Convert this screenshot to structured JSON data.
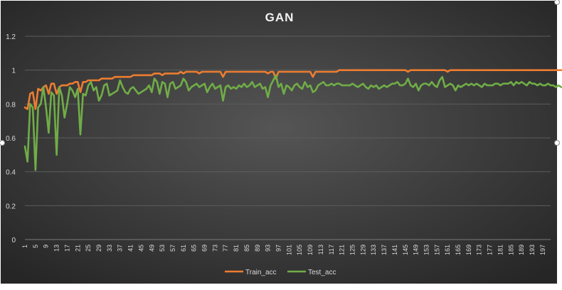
{
  "chart_data": {
    "type": "line",
    "title": "GAN",
    "xlabel": "",
    "ylabel": "",
    "ylim": [
      0,
      1.2
    ],
    "yticks": [
      "0",
      "0.2",
      "0.4",
      "0.6",
      "0.8",
      "1",
      "1.2"
    ],
    "xrange": [
      1,
      200
    ],
    "xtick_start": 1,
    "xtick_step": 4,
    "grid": true,
    "legend_position": "bottom",
    "series": [
      {
        "name": "Train_acc",
        "color": "#ED7D31",
        "values": [
          0.78,
          0.77,
          0.86,
          0.87,
          0.77,
          0.89,
          0.88,
          0.9,
          0.91,
          0.86,
          0.92,
          0.92,
          0.86,
          0.9,
          0.91,
          0.91,
          0.91,
          0.92,
          0.92,
          0.93,
          0.93,
          0.87,
          0.93,
          0.93,
          0.94,
          0.94,
          0.94,
          0.94,
          0.94,
          0.95,
          0.95,
          0.95,
          0.95,
          0.95,
          0.96,
          0.96,
          0.96,
          0.96,
          0.96,
          0.96,
          0.96,
          0.97,
          0.97,
          0.97,
          0.97,
          0.97,
          0.97,
          0.97,
          0.97,
          0.98,
          0.98,
          0.98,
          0.97,
          0.98,
          0.98,
          0.98,
          0.98,
          0.98,
          0.98,
          0.99,
          0.98,
          0.99,
          0.99,
          0.99,
          0.99,
          0.99,
          0.98,
          0.99,
          0.99,
          0.99,
          0.99,
          0.99,
          0.99,
          0.99,
          0.99,
          0.96,
          0.99,
          0.99,
          0.99,
          0.99,
          0.99,
          0.99,
          0.99,
          0.99,
          0.99,
          0.99,
          0.99,
          0.99,
          0.99,
          0.99,
          0.99,
          0.99,
          0.98,
          0.99,
          0.99,
          0.95,
          0.99,
          0.99,
          0.99,
          0.99,
          0.99,
          0.99,
          0.99,
          0.99,
          0.99,
          0.99,
          0.99,
          0.99,
          0.99,
          0.96,
          0.99,
          0.99,
          0.99,
          0.99,
          0.99,
          0.99,
          0.99,
          0.99,
          0.99,
          1.0,
          1.0,
          1.0,
          1.0,
          1.0,
          1.0,
          1.0,
          1.0,
          1.0,
          1.0,
          1.0,
          1.0,
          1.0,
          1.0,
          1.0,
          1.0,
          1.0,
          1.0,
          1.0,
          1.0,
          1.0,
          1.0,
          1.0,
          1.0,
          1.0,
          1.0,
          0.99,
          1.0,
          1.0,
          1.0,
          1.0,
          1.0,
          1.0,
          1.0,
          1.0,
          1.0,
          1.0,
          1.0,
          1.0,
          1.0,
          1.0,
          0.99,
          1.0,
          1.0,
          1.0,
          1.0,
          1.0,
          1.0,
          1.0,
          1.0,
          1.0,
          1.0,
          1.0,
          1.0,
          1.0,
          1.0,
          1.0,
          1.0,
          1.0,
          1.0,
          1.0,
          1.0,
          1.0,
          1.0,
          1.0,
          1.0,
          1.0,
          1.0,
          1.0,
          1.0,
          1.0,
          1.0,
          1.0,
          1.0,
          1.0,
          1.0,
          1.0,
          1.0,
          1.0,
          1.0,
          1.0,
          1.0,
          1.0,
          1.0,
          1.0,
          1.0,
          1.0
        ]
      },
      {
        "name": "Test_acc",
        "color": "#70AD47",
        "values": [
          0.55,
          0.46,
          0.8,
          0.78,
          0.41,
          0.78,
          0.8,
          0.9,
          0.78,
          0.63,
          0.87,
          0.85,
          0.5,
          0.9,
          0.85,
          0.72,
          0.8,
          0.9,
          0.88,
          0.84,
          0.89,
          0.62,
          0.86,
          0.85,
          0.91,
          0.93,
          0.88,
          0.9,
          0.82,
          0.85,
          0.91,
          0.92,
          0.85,
          0.86,
          0.87,
          0.88,
          0.94,
          0.9,
          0.87,
          0.86,
          0.89,
          0.9,
          0.88,
          0.86,
          0.87,
          0.88,
          0.89,
          0.91,
          0.87,
          0.95,
          0.93,
          0.86,
          0.93,
          0.92,
          0.84,
          0.92,
          0.93,
          0.89,
          0.9,
          0.91,
          0.95,
          0.93,
          0.88,
          0.9,
          0.91,
          0.92,
          0.9,
          0.91,
          0.92,
          0.87,
          0.9,
          0.92,
          0.89,
          0.9,
          0.91,
          0.82,
          0.9,
          0.91,
          0.89,
          0.9,
          0.89,
          0.91,
          0.9,
          0.92,
          0.9,
          0.91,
          0.93,
          0.9,
          0.91,
          0.92,
          0.89,
          0.9,
          0.84,
          0.91,
          0.94,
          0.97,
          0.9,
          0.92,
          0.86,
          0.91,
          0.9,
          0.88,
          0.91,
          0.92,
          0.9,
          0.89,
          0.93,
          0.9,
          0.91,
          0.87,
          0.88,
          0.91,
          0.92,
          0.93,
          0.91,
          0.91,
          0.92,
          0.91,
          0.92,
          0.92,
          0.91,
          0.91,
          0.91,
          0.91,
          0.92,
          0.91,
          0.9,
          0.91,
          0.92,
          0.9,
          0.89,
          0.91,
          0.9,
          0.91,
          0.89,
          0.9,
          0.91,
          0.9,
          0.91,
          0.92,
          0.92,
          0.93,
          0.91,
          0.91,
          0.92,
          0.95,
          0.91,
          0.9,
          0.92,
          0.88,
          0.91,
          0.92,
          0.92,
          0.91,
          0.93,
          0.91,
          0.9,
          0.94,
          0.96,
          0.9,
          0.91,
          0.92,
          0.91,
          0.88,
          0.91,
          0.9,
          0.91,
          0.92,
          0.91,
          0.92,
          0.91,
          0.92,
          0.91,
          0.9,
          0.92,
          0.91,
          0.91,
          0.91,
          0.92,
          0.92,
          0.91,
          0.92,
          0.92,
          0.92,
          0.93,
          0.91,
          0.93,
          0.92,
          0.93,
          0.92,
          0.91,
          0.93,
          0.92,
          0.92,
          0.91,
          0.92,
          0.91,
          0.91,
          0.92,
          0.91,
          0.91,
          0.9,
          0.91,
          0.9
        ]
      }
    ]
  }
}
